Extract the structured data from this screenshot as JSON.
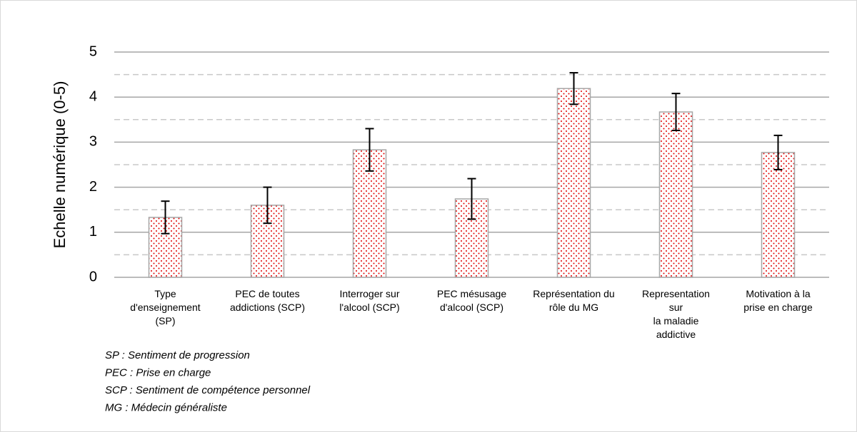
{
  "chart_data": {
    "type": "bar",
    "y_label": "Echelle numérique (0-5)",
    "categories": [
      "Type\nd'enseignement\n(SP)",
      "PEC de toutes\naddictions (SCP)",
      "Interroger sur\nl'alcool (SCP)",
      "PEC mésusage\nd'alcool (SCP)",
      "Représentation du\nrôle du MG",
      "Representation\nsur\nla maladie\naddictive",
      "Motivation à la\nprise en charge"
    ],
    "values": [
      1.33,
      1.6,
      2.83,
      1.74,
      4.19,
      3.67,
      2.77
    ],
    "errors": [
      0.36,
      0.4,
      0.47,
      0.45,
      0.35,
      0.41,
      0.38
    ],
    "color": "#e00000",
    "ylim": [
      0,
      5
    ],
    "yticks": [
      0,
      1,
      2,
      3,
      4,
      5
    ],
    "minor_yticks": [
      0.5,
      1.5,
      2.5,
      3.5,
      4.5
    ],
    "grid": true,
    "notes": [
      "SP : Sentiment de progression",
      "PEC : Prise en charge",
      "SCP : Sentiment de compétence personnel",
      "MG : Médecin généraliste"
    ]
  }
}
